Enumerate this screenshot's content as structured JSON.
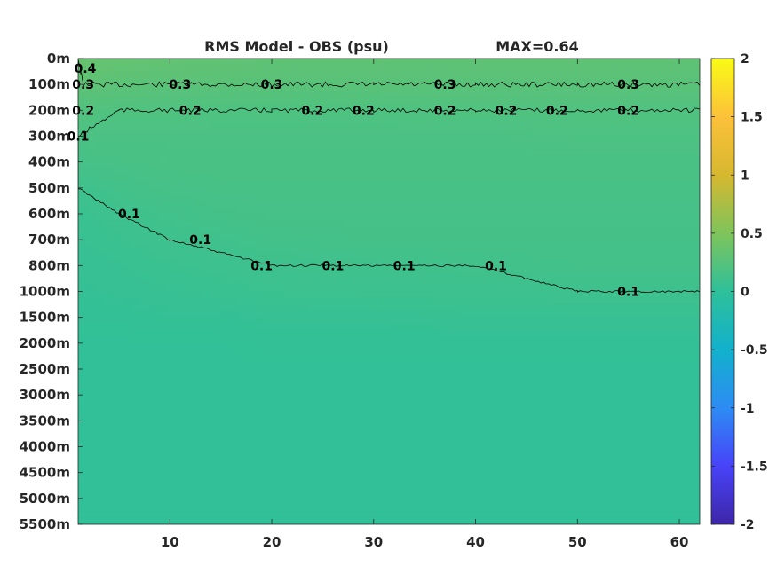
{
  "chart_data": {
    "type": "heatmap",
    "title": "RMS Model - OBS (psu)",
    "annotation": "MAX=0.64",
    "x": {
      "range": [
        1,
        62
      ],
      "ticks": [
        10,
        20,
        30,
        40,
        50,
        60
      ],
      "tick_labels": [
        "10",
        "20",
        "30",
        "40",
        "50",
        "60"
      ]
    },
    "y": {
      "reversed": true,
      "tick_labels": [
        "0m",
        "100m",
        "200m",
        "300m",
        "400m",
        "500m",
        "600m",
        "700m",
        "800m",
        "1000m",
        "1500m",
        "2000m",
        "2500m",
        "3000m",
        "3500m",
        "4000m",
        "4500m",
        "5000m",
        "5500m"
      ]
    },
    "colorbar": {
      "range": [
        -2,
        2
      ],
      "ticks": [
        2,
        1.5,
        1,
        0.5,
        0,
        -0.5,
        -1,
        -1.5,
        -2
      ],
      "tick_labels": [
        "2",
        "1.5",
        "1",
        "0.5",
        "0",
        "-0.5",
        "-1",
        "-1.5",
        "-2"
      ],
      "colormap": "parula",
      "colors": [
        "#3e26a8",
        "#4743f8",
        "#2d8cf4",
        "#12b1cc",
        "#2ec09a",
        "#7fc45b",
        "#d6b82f",
        "#fcc13a",
        "#f9fb15"
      ]
    },
    "field": {
      "levels": [
        "0m",
        "100m",
        "200m",
        "300m",
        "400m",
        "500m",
        "600m",
        "700m",
        "800m",
        "1000m",
        "1500m",
        "2000m",
        "2500m",
        "3000m",
        "3500m",
        "4000m",
        "4500m",
        "5000m",
        "5500m"
      ],
      "x": [
        1,
        5,
        10,
        15,
        20,
        30,
        40,
        50,
        62
      ],
      "values": [
        [
          0.35,
          0.33,
          0.32,
          0.31,
          0.3,
          0.3,
          0.3,
          0.3,
          0.3
        ],
        [
          0.3,
          0.28,
          0.27,
          0.27,
          0.27,
          0.27,
          0.27,
          0.27,
          0.27
        ],
        [
          0.22,
          0.21,
          0.21,
          0.2,
          0.2,
          0.2,
          0.21,
          0.21,
          0.21
        ],
        [
          0.18,
          0.18,
          0.18,
          0.18,
          0.18,
          0.18,
          0.18,
          0.19,
          0.19
        ],
        [
          0.15,
          0.16,
          0.17,
          0.17,
          0.17,
          0.17,
          0.17,
          0.17,
          0.17
        ],
        [
          0.1,
          0.13,
          0.15,
          0.16,
          0.16,
          0.16,
          0.16,
          0.16,
          0.16
        ],
        [
          0.07,
          0.1,
          0.12,
          0.14,
          0.15,
          0.15,
          0.15,
          0.15,
          0.15
        ],
        [
          0.06,
          0.08,
          0.1,
          0.11,
          0.13,
          0.14,
          0.14,
          0.14,
          0.14
        ],
        [
          0.05,
          0.06,
          0.08,
          0.09,
          0.1,
          0.11,
          0.12,
          0.13,
          0.13
        ],
        [
          0.04,
          0.05,
          0.06,
          0.07,
          0.08,
          0.09,
          0.09,
          0.1,
          0.1
        ],
        [
          0.03,
          0.03,
          0.04,
          0.04,
          0.05,
          0.05,
          0.06,
          0.06,
          0.06
        ],
        [
          0.02,
          0.02,
          0.02,
          0.02,
          0.03,
          0.03,
          0.03,
          0.03,
          0.03
        ],
        [
          0.02,
          0.02,
          0.02,
          0.02,
          0.02,
          0.02,
          0.02,
          0.02,
          0.02
        ],
        [
          0.02,
          0.02,
          0.02,
          0.02,
          0.02,
          0.02,
          0.02,
          0.02,
          0.02
        ],
        [
          0.02,
          0.02,
          0.02,
          0.02,
          0.02,
          0.02,
          0.02,
          0.02,
          0.02
        ],
        [
          0.02,
          0.02,
          0.02,
          0.02,
          0.02,
          0.02,
          0.02,
          0.02,
          0.02
        ],
        [
          0.02,
          0.02,
          0.02,
          0.02,
          0.02,
          0.02,
          0.02,
          0.02,
          0.02
        ],
        [
          0.02,
          0.02,
          0.02,
          0.02,
          0.02,
          0.02,
          0.02,
          0.02,
          0.02
        ],
        [
          0.02,
          0.02,
          0.02,
          0.02,
          0.02,
          0.02,
          0.02,
          0.02,
          0.02
        ]
      ]
    },
    "contours": [
      {
        "level": 0.3,
        "label": "0.3",
        "path": [
          [
            1,
            "0m"
          ],
          [
            1.5,
            "100m"
          ],
          [
            4,
            "100m"
          ],
          [
            10,
            "100m"
          ],
          [
            20,
            "100m"
          ],
          [
            30,
            "100m"
          ],
          [
            40,
            "100m"
          ],
          [
            50,
            "100m"
          ],
          [
            62,
            "100m"
          ]
        ],
        "labels_at": [
          [
            1.5,
            "100m"
          ],
          [
            11,
            "100m"
          ],
          [
            20,
            "100m"
          ],
          [
            37,
            "100m"
          ],
          [
            55,
            "100m"
          ]
        ]
      },
      {
        "level": 0.2,
        "label": "0.2",
        "path": [
          [
            1,
            "300m"
          ],
          [
            5,
            "200m"
          ],
          [
            10,
            "200m"
          ],
          [
            20,
            "200m"
          ],
          [
            30,
            "200m"
          ],
          [
            40,
            "200m"
          ],
          [
            50,
            "200m"
          ],
          [
            62,
            "200m"
          ]
        ],
        "labels_at": [
          [
            1.5,
            "200m"
          ],
          [
            12,
            "200m"
          ],
          [
            24,
            "200m"
          ],
          [
            29,
            "200m"
          ],
          [
            37,
            "200m"
          ],
          [
            43,
            "200m"
          ],
          [
            48,
            "200m"
          ],
          [
            55,
            "200m"
          ]
        ]
      },
      {
        "level": 0.1,
        "label": "0.1",
        "path": [
          [
            1,
            "300m"
          ],
          [
            1,
            "400m"
          ],
          [
            1,
            "500m"
          ],
          [
            5,
            "600m"
          ],
          [
            10,
            "700m"
          ],
          [
            20,
            "800m"
          ],
          [
            30,
            "800m"
          ],
          [
            40,
            "800m"
          ],
          [
            50,
            "1000m"
          ],
          [
            62,
            "1000m"
          ]
        ],
        "labels_at": [
          [
            1,
            "300m"
          ],
          [
            6,
            "600m"
          ],
          [
            13,
            "700m"
          ],
          [
            19,
            "800m"
          ],
          [
            26,
            "800m"
          ],
          [
            33,
            "800m"
          ],
          [
            42,
            "800m"
          ],
          [
            55,
            "1000m"
          ]
        ]
      }
    ],
    "extra_labels": [
      {
        "text": "0.4",
        "x": 1,
        "y": "0m"
      }
    ]
  }
}
